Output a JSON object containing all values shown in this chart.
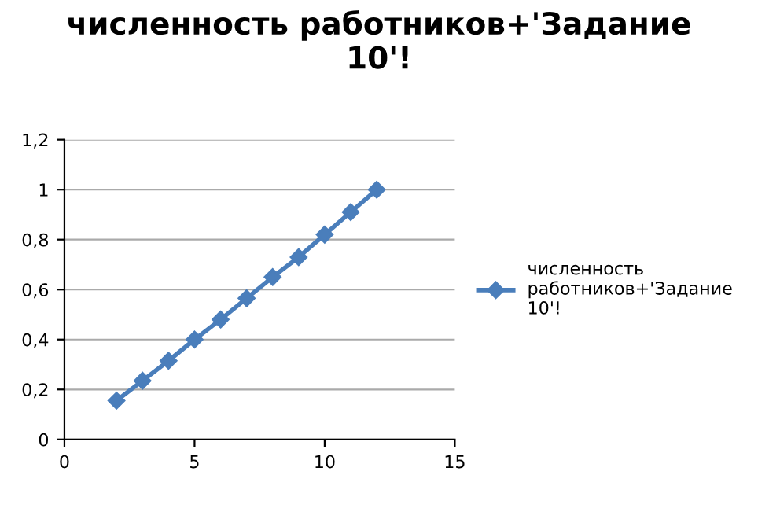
{
  "chart_data": {
    "type": "line",
    "title": "численность работников+'Задание 10'!",
    "series": [
      {
        "name": "численность работников+'Задание 10'!",
        "color": "#4a7ebb",
        "x": [
          2,
          3,
          4,
          5,
          6,
          7,
          8,
          9,
          10,
          11,
          12
        ],
        "values": [
          0.155,
          0.235,
          0.315,
          0.4,
          0.48,
          0.565,
          0.65,
          0.73,
          0.82,
          0.91,
          1.0
        ]
      }
    ],
    "xlim": [
      0,
      15
    ],
    "xticks": [
      0,
      5,
      10,
      15
    ],
    "ylim": [
      0,
      1.2
    ],
    "yticks": [
      {
        "value": 0,
        "label": "0"
      },
      {
        "value": 0.2,
        "label": "0,2"
      },
      {
        "value": 0.4,
        "label": "0,4"
      },
      {
        "value": 0.6,
        "label": "0,6"
      },
      {
        "value": 0.8,
        "label": "0,8"
      },
      {
        "value": 1,
        "label": "1"
      },
      {
        "value": 1.2,
        "label": "1,2"
      }
    ],
    "grid": "y",
    "legend": "right",
    "marker": "diamond",
    "line_style": "solid"
  }
}
